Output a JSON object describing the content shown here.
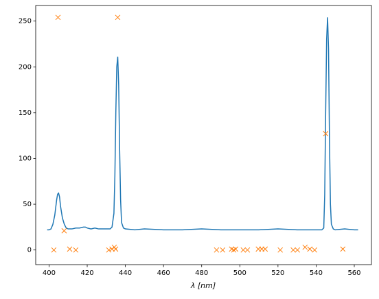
{
  "chart_data": {
    "type": "line-scatter",
    "xlabel": "λ [nm]",
    "xlim": [
      393,
      569
    ],
    "ylim": [
      -16,
      267
    ],
    "xticks": [
      400,
      420,
      440,
      460,
      480,
      500,
      520,
      540,
      560
    ],
    "yticks": [
      0,
      50,
      100,
      150,
      200,
      250
    ],
    "series": [
      {
        "kind": "line",
        "color": "#1f77b4",
        "x": [
          399,
          400,
          401,
          402,
          403,
          404,
          404.5,
          405,
          405.5,
          406,
          407,
          408,
          409,
          410,
          412,
          414,
          416,
          418,
          419,
          420,
          422,
          424,
          426,
          428,
          430,
          432,
          433,
          434,
          434.5,
          435,
          435.5,
          436,
          436.5,
          437,
          437.5,
          438,
          439,
          440,
          445,
          450,
          460,
          470,
          480,
          490,
          500,
          510,
          520,
          530,
          540,
          543,
          544,
          544.5,
          545,
          545.5,
          546,
          546.5,
          547,
          547.5,
          548,
          549,
          550,
          555,
          560,
          562
        ],
        "values": [
          22,
          22,
          23,
          28,
          38,
          55,
          61,
          62,
          58,
          48,
          35,
          28,
          24,
          23,
          23,
          24,
          24,
          25,
          25,
          24,
          23,
          24,
          23,
          23,
          23,
          23,
          25,
          40,
          80,
          150,
          200,
          211,
          180,
          110,
          55,
          30,
          24,
          23,
          22,
          23,
          22,
          22,
          23,
          22,
          22,
          22,
          23,
          22,
          22,
          22,
          24,
          60,
          150,
          230,
          254,
          220,
          120,
          50,
          28,
          23,
          22,
          23,
          22,
          22
        ]
      },
      {
        "kind": "scatter",
        "color": "#ff7f0e",
        "x": [
          404.7,
          436,
          407.9,
          402.5,
          410.8,
          414,
          431.3,
          433,
          434.2,
          434.9,
          487.8,
          491,
          495.7,
          496.8,
          497.8,
          501.8,
          504,
          509.7,
          511.5,
          513.3,
          521.2,
          528,
          530.2,
          534.2,
          536.7,
          539.2,
          545,
          554
        ],
        "values": [
          254,
          254,
          21,
          0,
          1,
          0,
          0,
          1,
          3,
          1,
          0,
          0,
          1,
          0,
          1,
          0,
          0,
          1,
          1,
          1,
          0,
          0,
          0,
          3,
          1,
          0,
          127,
          1
        ]
      }
    ]
  }
}
